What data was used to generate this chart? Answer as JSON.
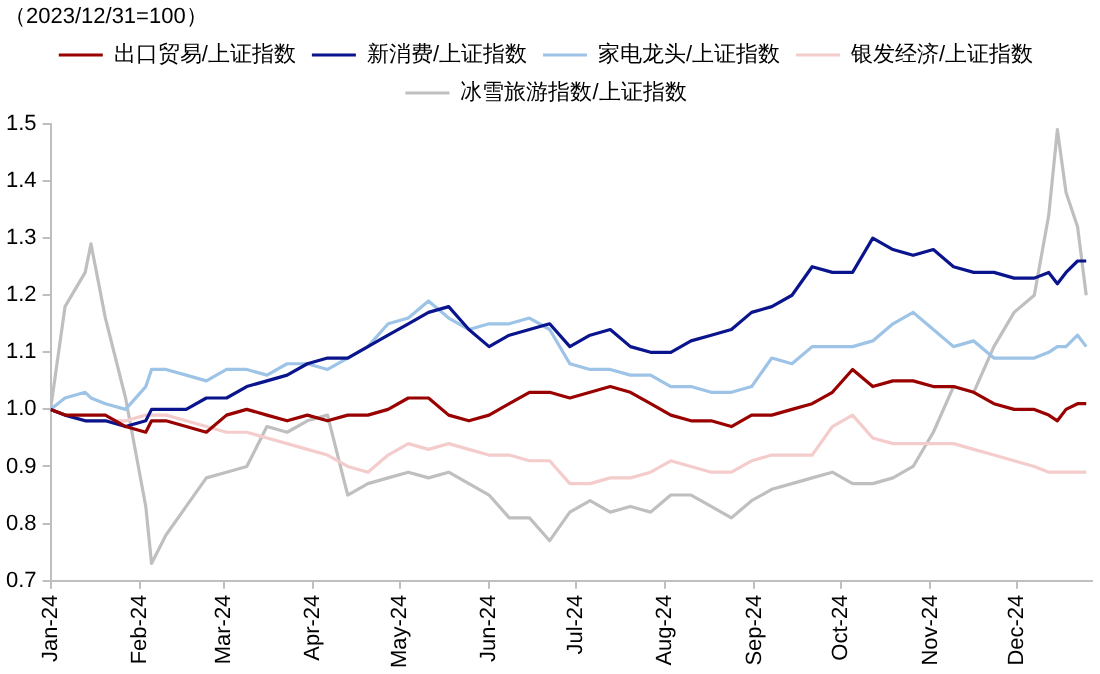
{
  "chart_data": {
    "type": "line",
    "annotations": [
      "（2023/12/31=100）"
    ],
    "x": [
      "2024-01-01",
      "2024-01-06",
      "2024-01-13",
      "2024-01-15",
      "2024-01-20",
      "2024-01-27",
      "2024-02-03",
      "2024-02-05",
      "2024-02-10",
      "2024-02-17",
      "2024-02-24",
      "2024-03-02",
      "2024-03-09",
      "2024-03-16",
      "2024-03-23",
      "2024-03-30",
      "2024-04-06",
      "2024-04-13",
      "2024-04-20",
      "2024-04-27",
      "2024-05-04",
      "2024-05-11",
      "2024-05-18",
      "2024-05-25",
      "2024-06-01",
      "2024-06-08",
      "2024-06-15",
      "2024-06-22",
      "2024-06-29",
      "2024-07-06",
      "2024-07-13",
      "2024-07-20",
      "2024-07-27",
      "2024-08-03",
      "2024-08-10",
      "2024-08-17",
      "2024-08-24",
      "2024-08-31",
      "2024-09-07",
      "2024-09-14",
      "2024-09-21",
      "2024-09-28",
      "2024-10-05",
      "2024-10-12",
      "2024-10-19",
      "2024-10-26",
      "2024-11-02",
      "2024-11-09",
      "2024-11-16",
      "2024-11-23",
      "2024-11-30",
      "2024-12-07",
      "2024-12-12",
      "2024-12-15",
      "2024-12-18",
      "2024-12-22",
      "2024-12-25"
    ],
    "series": [
      {
        "name": "出口贸易/上证指数",
        "color": "#990000",
        "values": [
          1.0,
          0.99,
          0.99,
          0.99,
          0.99,
          0.97,
          0.96,
          0.98,
          0.98,
          0.97,
          0.96,
          0.99,
          1.0,
          0.99,
          0.98,
          0.99,
          0.98,
          0.99,
          0.99,
          1.0,
          1.02,
          1.02,
          0.99,
          0.98,
          0.99,
          1.01,
          1.03,
          1.03,
          1.02,
          1.03,
          1.04,
          1.03,
          1.01,
          0.99,
          0.98,
          0.98,
          0.97,
          0.99,
          0.99,
          1.0,
          1.01,
          1.03,
          1.07,
          1.04,
          1.05,
          1.05,
          1.04,
          1.04,
          1.03,
          1.01,
          1.0,
          1.0,
          0.99,
          0.98,
          1.0,
          1.01,
          1.01
        ]
      },
      {
        "name": "新消费/上证指数",
        "color": "#0a148c",
        "values": [
          1.0,
          0.99,
          0.98,
          0.98,
          0.98,
          0.97,
          0.98,
          1.0,
          1.0,
          1.0,
          1.02,
          1.02,
          1.04,
          1.05,
          1.06,
          1.08,
          1.09,
          1.09,
          1.11,
          1.13,
          1.15,
          1.17,
          1.18,
          1.14,
          1.11,
          1.13,
          1.14,
          1.15,
          1.11,
          1.13,
          1.14,
          1.11,
          1.1,
          1.1,
          1.12,
          1.13,
          1.14,
          1.17,
          1.18,
          1.2,
          1.25,
          1.24,
          1.24,
          1.3,
          1.28,
          1.27,
          1.28,
          1.25,
          1.24,
          1.24,
          1.23,
          1.23,
          1.24,
          1.22,
          1.24,
          1.26,
          1.26
        ]
      },
      {
        "name": "家电龙头/上证指数",
        "color": "#9dc3e6",
        "values": [
          1.0,
          1.02,
          1.03,
          1.02,
          1.01,
          1.0,
          1.04,
          1.07,
          1.07,
          1.06,
          1.05,
          1.07,
          1.07,
          1.06,
          1.08,
          1.08,
          1.07,
          1.09,
          1.11,
          1.15,
          1.16,
          1.19,
          1.16,
          1.14,
          1.15,
          1.15,
          1.16,
          1.14,
          1.08,
          1.07,
          1.07,
          1.06,
          1.06,
          1.04,
          1.04,
          1.03,
          1.03,
          1.04,
          1.09,
          1.08,
          1.11,
          1.11,
          1.11,
          1.12,
          1.15,
          1.17,
          1.14,
          1.11,
          1.12,
          1.09,
          1.09,
          1.09,
          1.1,
          1.11,
          1.11,
          1.13,
          1.11
        ]
      },
      {
        "name": "银发经济/上证指数",
        "color": "#f4cccc",
        "values": [
          1.0,
          0.99,
          0.98,
          0.98,
          0.98,
          0.98,
          0.99,
          0.99,
          0.99,
          0.98,
          0.97,
          0.96,
          0.96,
          0.95,
          0.94,
          0.93,
          0.92,
          0.9,
          0.89,
          0.92,
          0.94,
          0.93,
          0.94,
          0.93,
          0.92,
          0.92,
          0.91,
          0.91,
          0.87,
          0.87,
          0.88,
          0.88,
          0.89,
          0.91,
          0.9,
          0.89,
          0.89,
          0.91,
          0.92,
          0.92,
          0.92,
          0.97,
          0.99,
          0.95,
          0.94,
          0.94,
          0.94,
          0.94,
          0.93,
          0.92,
          0.91,
          0.9,
          0.89,
          0.89,
          0.89,
          0.89,
          0.89
        ]
      },
      {
        "name": "冰雪旅游指数/上证指数",
        "color": "#bfbfbf",
        "values": [
          1.0,
          1.18,
          1.24,
          1.29,
          1.16,
          1.02,
          0.83,
          0.73,
          0.78,
          0.83,
          0.88,
          0.89,
          0.9,
          0.97,
          0.96,
          0.98,
          0.99,
          0.85,
          0.87,
          0.88,
          0.89,
          0.88,
          0.89,
          0.87,
          0.85,
          0.81,
          0.81,
          0.77,
          0.82,
          0.84,
          0.82,
          0.83,
          0.82,
          0.85,
          0.85,
          0.83,
          0.81,
          0.84,
          0.86,
          0.87,
          0.88,
          0.89,
          0.87,
          0.87,
          0.88,
          0.9,
          0.96,
          1.04,
          1.03,
          1.11,
          1.17,
          1.2,
          1.34,
          1.49,
          1.38,
          1.32,
          1.2
        ]
      }
    ],
    "xlim": [
      "2024-01-01",
      "2024-12-27"
    ],
    "xticks": [
      {
        "value": "2024-01-01",
        "label": "Jan-24"
      },
      {
        "value": "2024-02-01",
        "label": "Feb-24"
      },
      {
        "value": "2024-03-01",
        "label": "Mar-24"
      },
      {
        "value": "2024-04-01",
        "label": "Apr-24"
      },
      {
        "value": "2024-05-01",
        "label": "May-24"
      },
      {
        "value": "2024-06-01",
        "label": "Jun-24"
      },
      {
        "value": "2024-07-01",
        "label": "Jul-24"
      },
      {
        "value": "2024-08-01",
        "label": "Aug-24"
      },
      {
        "value": "2024-09-01",
        "label": "Sep-24"
      },
      {
        "value": "2024-10-01",
        "label": "Oct-24"
      },
      {
        "value": "2024-11-01",
        "label": "Nov-24"
      },
      {
        "value": "2024-12-01",
        "label": "Dec-24"
      }
    ],
    "ylim": [
      0.7,
      1.5
    ],
    "yticks": [
      {
        "value": 0.7,
        "label": "0.7"
      },
      {
        "value": 0.8,
        "label": "0.8"
      },
      {
        "value": 0.9,
        "label": "0.9"
      },
      {
        "value": 1.0,
        "label": "1.0"
      },
      {
        "value": 1.1,
        "label": "1.1"
      },
      {
        "value": 1.2,
        "label": "1.2"
      },
      {
        "value": 1.3,
        "label": "1.3"
      },
      {
        "value": 1.4,
        "label": "1.4"
      },
      {
        "value": 1.5,
        "label": "1.5"
      }
    ],
    "grid": false,
    "legend": "top"
  }
}
